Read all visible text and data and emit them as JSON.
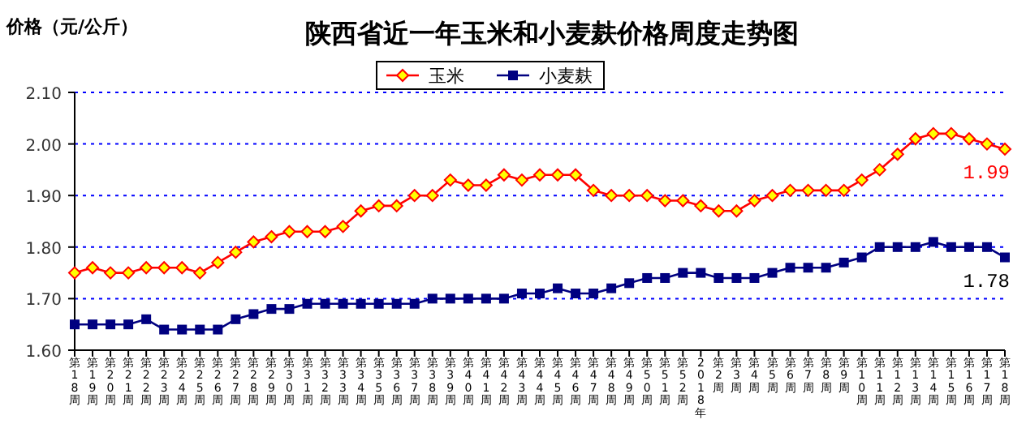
{
  "chart_data": {
    "type": "line",
    "title": "陕西省近一年玉米和小麦麸价格周度走势图",
    "ylabel": "价格（元/公斤）",
    "categories": [
      "第18周",
      "第19周",
      "第20周",
      "第21周",
      "第22周",
      "第23周",
      "第24周",
      "第25周",
      "第26周",
      "第27周",
      "第28周",
      "第29周",
      "第30周",
      "第31周",
      "第32周",
      "第33周",
      "第34周",
      "第35周",
      "第36周",
      "第37周",
      "第38周",
      "第39周",
      "第40周",
      "第41周",
      "第42周",
      "第43周",
      "第44周",
      "第45周",
      "第46周",
      "第47周",
      "第48周",
      "第49周",
      "第50周",
      "第51周",
      "第52周",
      "2018年",
      "第2周",
      "第3周",
      "第4周",
      "第5周",
      "第6周",
      "第7周",
      "第8周",
      "第9周",
      "第10周",
      "第11周",
      "第12周",
      "第13周",
      "第14周",
      "第15周",
      "第16周",
      "第17周",
      "第18周"
    ],
    "series": [
      {
        "name": "玉米",
        "color": "#ff0000",
        "marker": "diamond",
        "values": [
          1.75,
          1.76,
          1.75,
          1.75,
          1.76,
          1.76,
          1.76,
          1.75,
          1.77,
          1.79,
          1.81,
          1.82,
          1.83,
          1.83,
          1.83,
          1.84,
          1.87,
          1.88,
          1.88,
          1.9,
          1.9,
          1.93,
          1.92,
          1.92,
          1.94,
          1.93,
          1.94,
          1.94,
          1.94,
          1.91,
          1.9,
          1.9,
          1.9,
          1.89,
          1.89,
          1.88,
          1.87,
          1.87,
          1.89,
          1.9,
          1.91,
          1.91,
          1.91,
          1.91,
          1.93,
          1.95,
          1.98,
          2.01,
          2.02,
          2.02,
          2.01,
          2.0,
          1.99
        ],
        "value_labels": [
          null,
          null,
          null,
          null,
          null,
          null,
          null,
          null,
          null,
          null,
          null,
          null,
          null,
          null,
          null,
          null,
          null,
          null,
          null,
          null,
          null,
          null,
          null,
          null,
          null,
          null,
          null,
          null,
          null,
          null,
          null,
          null,
          null,
          null,
          null,
          null,
          null,
          null,
          null,
          null,
          null,
          null,
          null,
          null,
          null,
          null,
          null,
          null,
          null,
          null,
          null,
          null,
          "1.99"
        ]
      },
      {
        "name": "小麦麸",
        "color": "#000080",
        "marker": "square",
        "values": [
          1.65,
          1.65,
          1.65,
          1.65,
          1.66,
          1.64,
          1.64,
          1.64,
          1.64,
          1.66,
          1.67,
          1.68,
          1.68,
          1.69,
          1.69,
          1.69,
          1.69,
          1.69,
          1.69,
          1.69,
          1.7,
          1.7,
          1.7,
          1.7,
          1.7,
          1.71,
          1.71,
          1.72,
          1.71,
          1.71,
          1.72,
          1.73,
          1.74,
          1.74,
          1.75,
          1.75,
          1.74,
          1.74,
          1.74,
          1.75,
          1.76,
          1.76,
          1.76,
          1.77,
          1.78,
          1.8,
          1.8,
          1.8,
          1.81,
          1.8,
          1.8,
          1.8,
          1.78
        ],
        "value_labels": [
          null,
          null,
          null,
          null,
          null,
          null,
          null,
          null,
          null,
          null,
          null,
          null,
          null,
          null,
          null,
          null,
          null,
          null,
          null,
          null,
          null,
          null,
          null,
          null,
          null,
          null,
          null,
          null,
          null,
          null,
          null,
          null,
          null,
          null,
          null,
          null,
          null,
          null,
          null,
          null,
          null,
          null,
          null,
          null,
          null,
          null,
          null,
          null,
          null,
          null,
          null,
          null,
          "1.78"
        ]
      }
    ],
    "ylim": [
      1.6,
      2.1
    ],
    "yticks": [
      {
        "value": 1.6,
        "label": "1.60"
      },
      {
        "value": 1.7,
        "label": "1.70"
      },
      {
        "value": 1.8,
        "label": "1.80"
      },
      {
        "value": 1.9,
        "label": "1.90"
      },
      {
        "value": 2.0,
        "label": "2.00"
      },
      {
        "value": 2.1,
        "label": "2.10"
      }
    ],
    "grid": "y",
    "legend": "top",
    "line_style": "solid"
  }
}
